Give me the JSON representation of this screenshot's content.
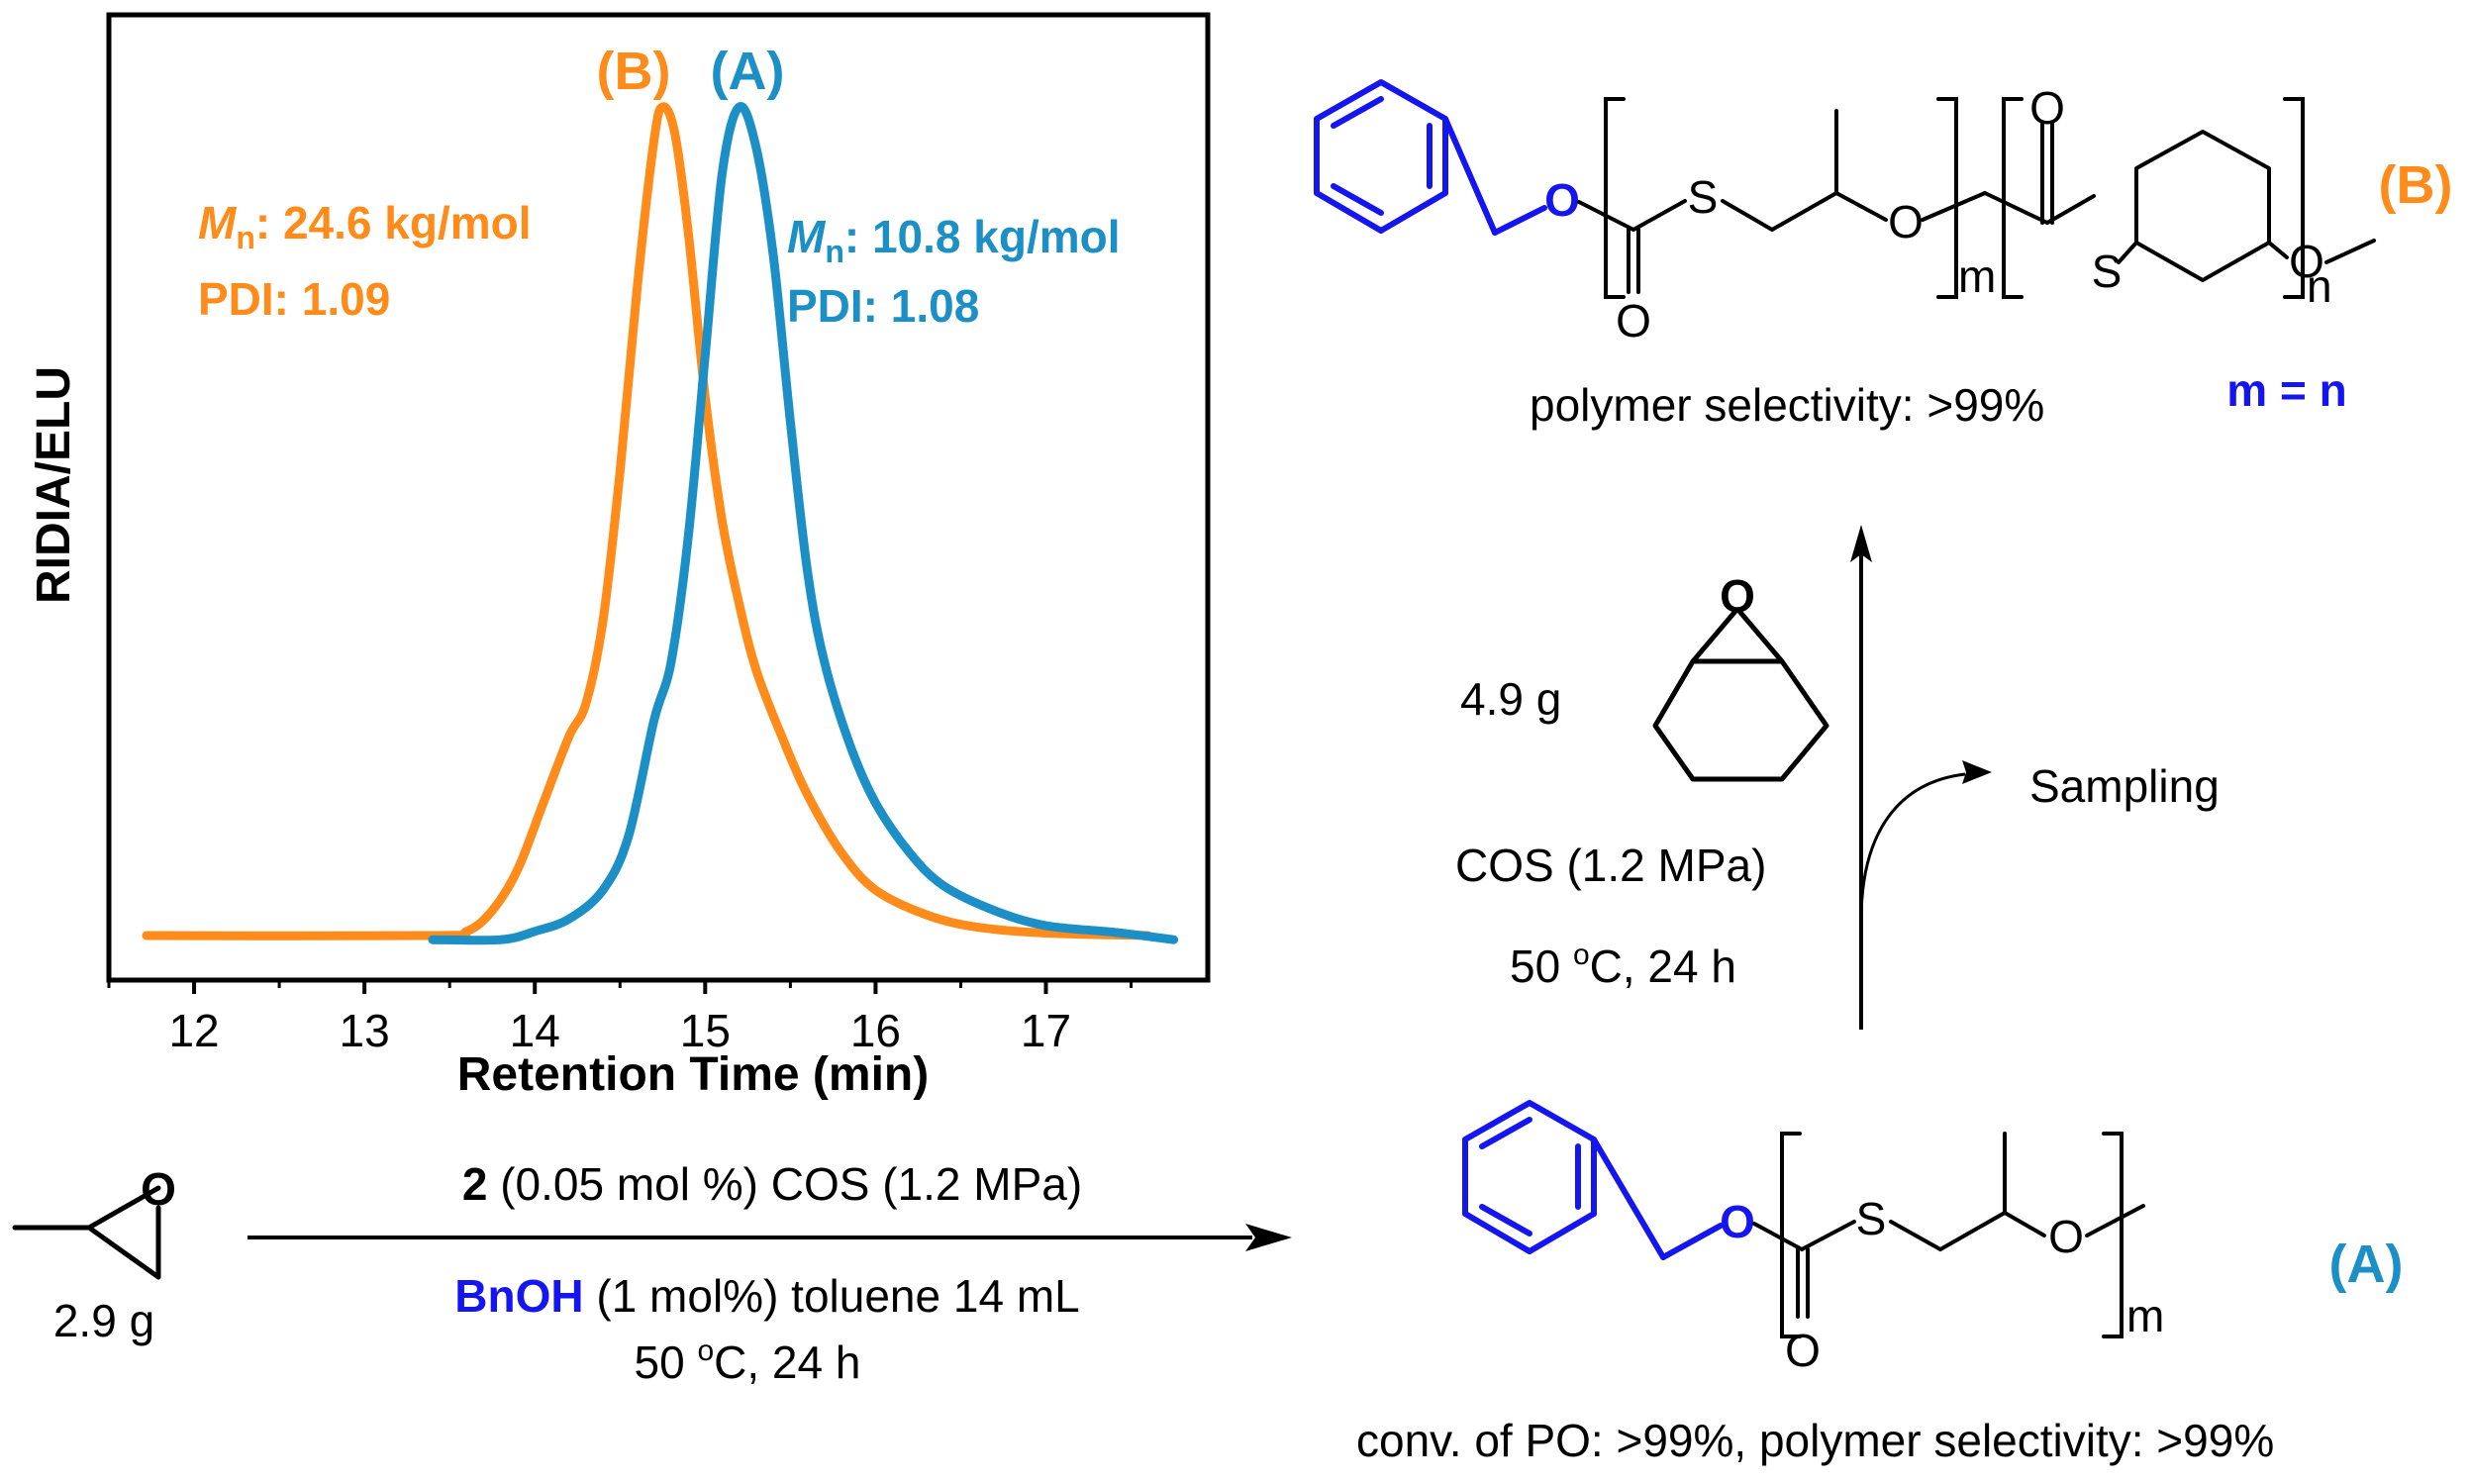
{
  "chart_data": {
    "type": "line",
    "xlabel": "Retention Time (min)",
    "ylabel": "RIDIA/ELU",
    "x_ticks": [
      12,
      13,
      14,
      15,
      16,
      17
    ],
    "xlim": [
      11.5,
      17.95
    ],
    "ylim": [
      0,
      1.06
    ],
    "grid": false,
    "series": [
      {
        "name": "(B)",
        "color": "#FF8C1A",
        "label_mn_prefix": "M",
        "label_mn_sub": "n",
        "label_mn_value": ": 24.6 kg/mol",
        "label_pdi": "PDI: 1.09",
        "points": [
          [
            11.72,
            0.0
          ],
          [
            13.4,
            0.0
          ],
          [
            13.6,
            0.005
          ],
          [
            13.75,
            0.03
          ],
          [
            13.9,
            0.08
          ],
          [
            14.05,
            0.16
          ],
          [
            14.2,
            0.24
          ],
          [
            14.3,
            0.28
          ],
          [
            14.4,
            0.38
          ],
          [
            14.5,
            0.56
          ],
          [
            14.6,
            0.78
          ],
          [
            14.7,
            0.96
          ],
          [
            14.75,
            1.0
          ],
          [
            14.82,
            0.97
          ],
          [
            14.9,
            0.85
          ],
          [
            15.0,
            0.65
          ],
          [
            15.1,
            0.5
          ],
          [
            15.2,
            0.4
          ],
          [
            15.3,
            0.32
          ],
          [
            15.45,
            0.24
          ],
          [
            15.6,
            0.17
          ],
          [
            15.8,
            0.1
          ],
          [
            16.0,
            0.055
          ],
          [
            16.3,
            0.025
          ],
          [
            16.6,
            0.01
          ],
          [
            17.0,
            0.003
          ],
          [
            17.6,
            0.0
          ]
        ]
      },
      {
        "name": "(A)",
        "color": "#1B8FC6",
        "label_mn_prefix": "M",
        "label_mn_sub": "n",
        "label_mn_value": ": 10.8 kg/mol",
        "label_pdi": "PDI: 1.08",
        "points": [
          [
            13.4,
            -0.005
          ],
          [
            13.8,
            -0.005
          ],
          [
            14.0,
            0.005
          ],
          [
            14.2,
            0.02
          ],
          [
            14.4,
            0.055
          ],
          [
            14.55,
            0.12
          ],
          [
            14.7,
            0.26
          ],
          [
            14.8,
            0.33
          ],
          [
            14.9,
            0.48
          ],
          [
            15.0,
            0.7
          ],
          [
            15.1,
            0.92
          ],
          [
            15.2,
            1.0
          ],
          [
            15.3,
            0.95
          ],
          [
            15.4,
            0.82
          ],
          [
            15.5,
            0.62
          ],
          [
            15.6,
            0.44
          ],
          [
            15.7,
            0.33
          ],
          [
            15.85,
            0.23
          ],
          [
            16.0,
            0.16
          ],
          [
            16.2,
            0.1
          ],
          [
            16.4,
            0.06
          ],
          [
            16.7,
            0.03
          ],
          [
            17.0,
            0.012
          ],
          [
            17.4,
            0.004
          ],
          [
            17.75,
            -0.005
          ]
        ]
      }
    ]
  },
  "scheme": {
    "reactant_mass": "2.9 g",
    "arrow_top_reagent_num": "2",
    "arrow_top_reagent_rest": " (0.05 mol %)  COS (1.2 MPa)",
    "arrow_bottom_bnoh": "BnOH",
    "arrow_bottom_rest": " (1 mol%)  toluene 14 mL",
    "arrow_temp_prefix": "50 ",
    "arrow_temp_sup": "o",
    "arrow_temp_suffix": "C, 24 h",
    "product_a_tag": "(A)",
    "product_a_note": "conv. of PO: >99%, polymer selectivity: >99%",
    "step2_mass": "4.9 g",
    "step2_cos": "COS (1.2 MPa)",
    "step2_temp_prefix": "50 ",
    "step2_temp_sup": "o",
    "step2_temp_suffix": "C, 24 h",
    "sampling": "Sampling",
    "product_b_tag": "(B)",
    "product_b_note": "polymer selectivity: >99%",
    "ratio": "m = n",
    "atom_o": "O",
    "atom_s": "S",
    "sub_m": "m",
    "sub_n": "n"
  },
  "colors": {
    "orange": "#FF8C1A",
    "blue_series": "#1B8FC6",
    "blue_struct": "#1515F0",
    "black": "#000000"
  }
}
